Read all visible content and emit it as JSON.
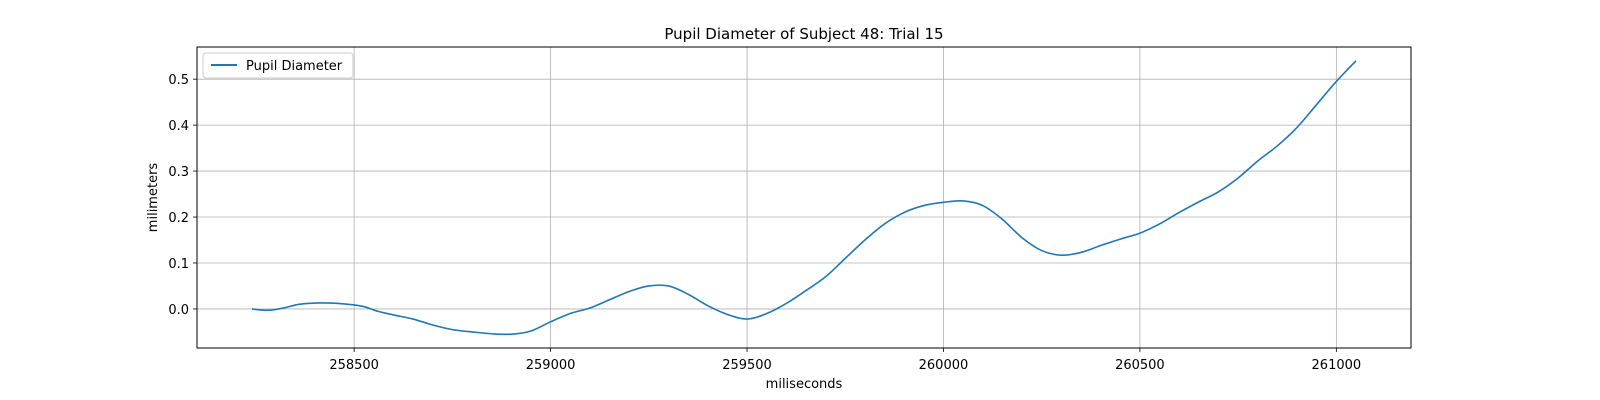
{
  "chart_data": {
    "type": "line",
    "title": "Pupil Diameter of Subject 48: Trial 15",
    "xlabel": "miliseconds",
    "ylabel": "milimeters",
    "xlim": [
      258100,
      261190
    ],
    "ylim": [
      -0.085,
      0.57
    ],
    "xticks": [
      258500,
      259000,
      259500,
      260000,
      260500,
      261000
    ],
    "yticks": [
      0.0,
      0.1,
      0.2,
      0.3,
      0.4,
      0.5
    ],
    "xtick_labels": [
      "258500",
      "259000",
      "259500",
      "260000",
      "260500",
      "261000"
    ],
    "ytick_labels": [
      "0.0",
      "0.1",
      "0.2",
      "0.3",
      "0.4",
      "0.5"
    ],
    "grid": true,
    "legend": {
      "position": "top-left",
      "entries": [
        "Pupil Diameter"
      ]
    },
    "series": [
      {
        "name": "Pupil Diameter",
        "color": "#1f77b4",
        "x": [
          258240,
          258280,
          258320,
          258360,
          258410,
          258460,
          258520,
          258560,
          258600,
          258650,
          258700,
          258750,
          258800,
          258850,
          258900,
          258950,
          259000,
          259050,
          259100,
          259150,
          259200,
          259250,
          259300,
          259350,
          259400,
          259450,
          259500,
          259550,
          259600,
          259650,
          259700,
          259750,
          259800,
          259850,
          259900,
          259950,
          260000,
          260050,
          260100,
          260150,
          260200,
          260250,
          260300,
          260350,
          260400,
          260450,
          260500,
          260550,
          260600,
          260650,
          260700,
          260750,
          260800,
          260850,
          260900,
          260950,
          261000,
          261050
        ],
        "y": [
          0.0,
          -0.003,
          0.002,
          0.01,
          0.013,
          0.012,
          0.006,
          -0.005,
          -0.013,
          -0.022,
          -0.035,
          -0.045,
          -0.05,
          -0.054,
          -0.055,
          -0.048,
          -0.028,
          -0.01,
          0.002,
          0.02,
          0.038,
          0.05,
          0.05,
          0.032,
          0.007,
          -0.012,
          -0.022,
          -0.01,
          0.012,
          0.04,
          0.07,
          0.11,
          0.15,
          0.185,
          0.21,
          0.225,
          0.232,
          0.235,
          0.225,
          0.195,
          0.155,
          0.127,
          0.117,
          0.123,
          0.138,
          0.152,
          0.165,
          0.185,
          0.21,
          0.233,
          0.255,
          0.285,
          0.322,
          0.355,
          0.395,
          0.445,
          0.495,
          0.54
        ]
      }
    ]
  }
}
